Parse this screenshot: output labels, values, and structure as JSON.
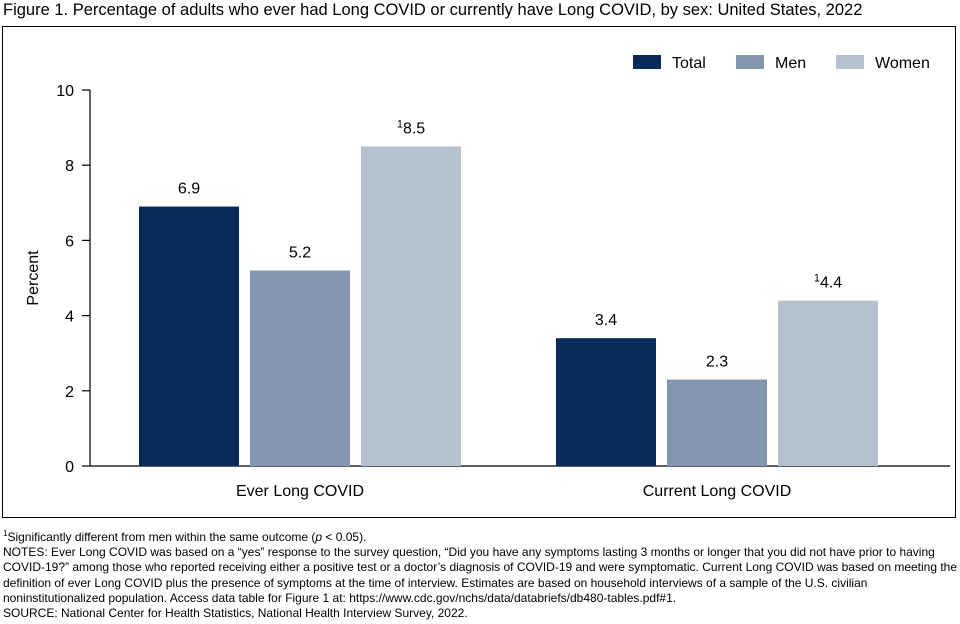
{
  "figure_title": "Figure 1. Percentage of adults who ever had Long COVID or currently have Long COVID, by sex: United States, 2022",
  "colors": {
    "Total": "#0a2a5c",
    "Men": "#8597b0",
    "Women": "#b6c1d0"
  },
  "chart_data": {
    "type": "bar",
    "categories": [
      "Ever Long COVID",
      "Current Long COVID"
    ],
    "series": [
      {
        "name": "Total",
        "values": [
          6.9,
          3.4
        ]
      },
      {
        "name": "Men",
        "values": [
          5.2,
          2.3
        ]
      },
      {
        "name": "Women",
        "values": [
          8.5,
          4.4
        ]
      }
    ],
    "value_labels": [
      [
        "6.9",
        "5.2",
        "8.5"
      ],
      [
        "3.4",
        "2.3",
        "4.4"
      ]
    ],
    "label_superscripts": [
      [
        "",
        "",
        "1"
      ],
      [
        "",
        "",
        "1"
      ]
    ],
    "ylabel": "Percent",
    "xlabel": "",
    "ylim": [
      0,
      10
    ],
    "yticks": [
      0,
      2,
      4,
      6,
      8,
      10
    ],
    "legend_position": "top-right",
    "grid": false
  },
  "footnote": {
    "marker": "1",
    "text_before": "Significantly different from men within the same outcome (",
    "italic": "p",
    "text_after": " < 0.05)."
  },
  "notes": "NOTES: Ever Long COVID was based on a “yes” response to the survey question, “Did you have any symptoms lasting 3 months or longer that you did not have prior to having COVID-19?” among those who reported receiving either a positive test or a doctor’s diagnosis of COVID-19 and were symptomatic. Current Long COVID was based on meeting the definition of ever Long COVID plus the presence of symptoms at the time of interview. Estimates are based on household interviews of a sample of the U.S. civilian noninstitutionalized population. Access data table for Figure 1 at: https://www.cdc.gov/nchs/data/databriefs/db480-tables.pdf#1.",
  "source": "SOURCE: National Center for Health Statistics, National Health Interview Survey, 2022."
}
